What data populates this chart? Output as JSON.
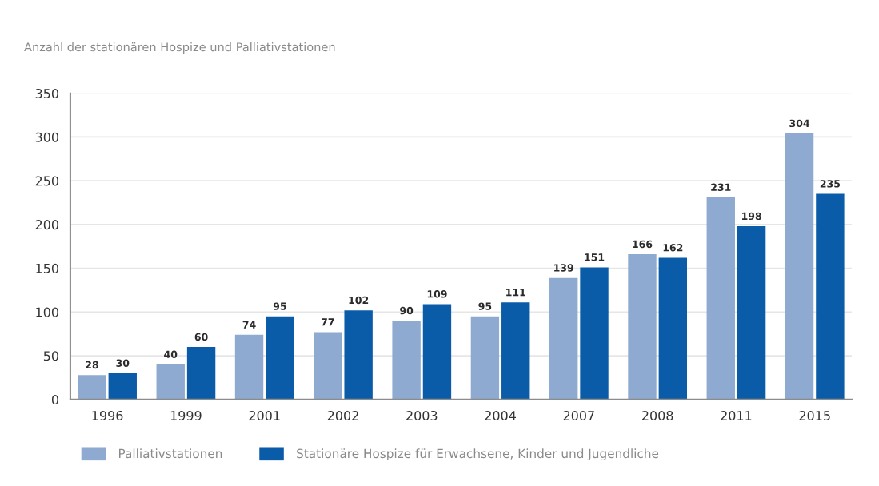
{
  "chart_data": {
    "type": "bar",
    "title": "Anzahl der stationären Hospize und Palliativstationen",
    "categories": [
      "1996",
      "1999",
      "2001",
      "2002",
      "2003",
      "2004",
      "2007",
      "2008",
      "2011",
      "2015"
    ],
    "series": [
      {
        "name": "Palliativstationen",
        "color": "#8eaad0",
        "values": [
          28,
          40,
          74,
          77,
          90,
          95,
          139,
          166,
          231,
          304
        ]
      },
      {
        "name": "Stationäre Hospize für Erwachsene, Kinder und Jugendliche",
        "color": "#0a5ca8",
        "values": [
          30,
          60,
          95,
          102,
          109,
          111,
          151,
          162,
          198,
          235
        ]
      }
    ],
    "ylim": [
      0,
      350
    ],
    "yticks": [
      0,
      50,
      100,
      150,
      200,
      250,
      300,
      350
    ],
    "grid": "y",
    "legend": "bottom",
    "data_labels": true
  }
}
